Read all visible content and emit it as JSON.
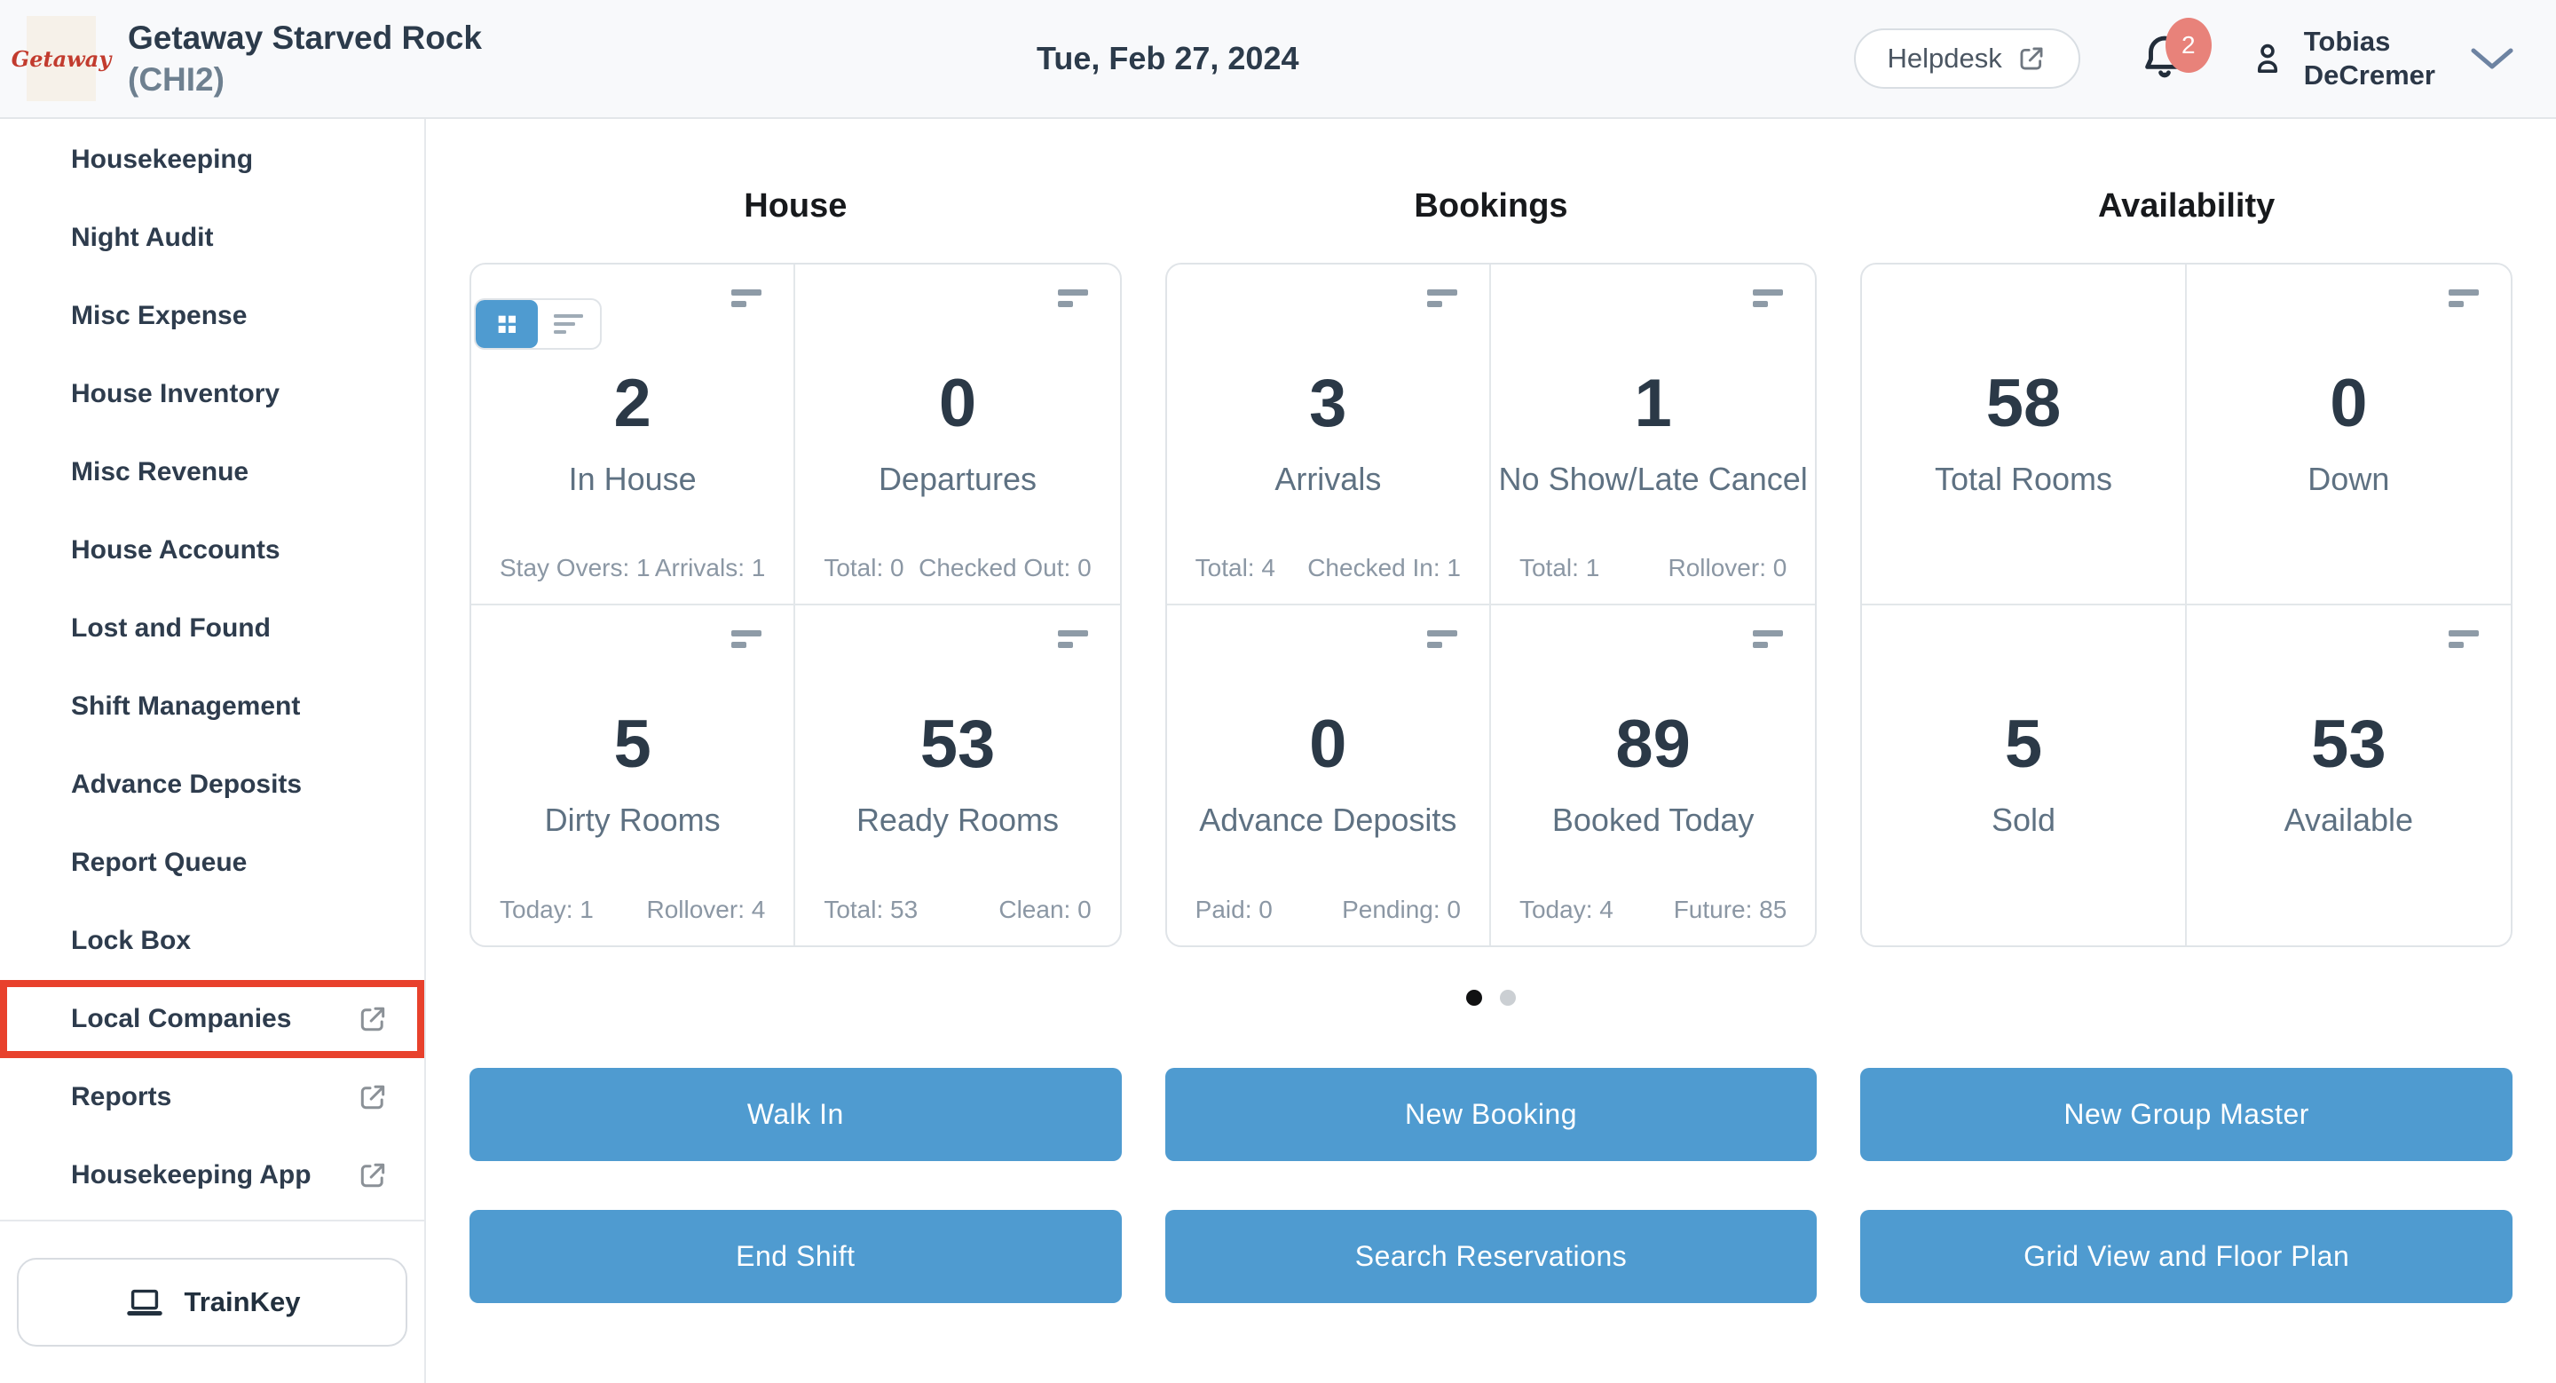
{
  "header": {
    "logo_text": "Getaway",
    "property_name": "Getaway Starved Rock",
    "property_code": "(CHI2)",
    "date": "Tue, Feb 27, 2024",
    "helpdesk_label": "Helpdesk",
    "notification_count": "2",
    "user_name_line1": "Tobias",
    "user_name_line2": "DeCremer"
  },
  "sidebar": {
    "items": [
      {
        "label": "Housekeeping",
        "external": false,
        "highlighted": false
      },
      {
        "label": "Night Audit",
        "external": false,
        "highlighted": false
      },
      {
        "label": "Misc Expense",
        "external": false,
        "highlighted": false
      },
      {
        "label": "House Inventory",
        "external": false,
        "highlighted": false
      },
      {
        "label": "Misc Revenue",
        "external": false,
        "highlighted": false
      },
      {
        "label": "House Accounts",
        "external": false,
        "highlighted": false
      },
      {
        "label": "Lost and Found",
        "external": false,
        "highlighted": false
      },
      {
        "label": "Shift Management",
        "external": false,
        "highlighted": false
      },
      {
        "label": "Advance Deposits",
        "external": false,
        "highlighted": false
      },
      {
        "label": "Report Queue",
        "external": false,
        "highlighted": false
      },
      {
        "label": "Lock Box",
        "external": false,
        "highlighted": false
      },
      {
        "label": "Local Companies",
        "external": true,
        "highlighted": true
      },
      {
        "label": "Reports",
        "external": true,
        "highlighted": false
      },
      {
        "label": "Housekeeping App",
        "external": true,
        "highlighted": false
      }
    ],
    "trainkey_label": "TrainKey"
  },
  "view_toggle": {
    "active": "grid"
  },
  "sections": [
    {
      "title": "House",
      "cards": [
        {
          "value": "2",
          "label": "In House",
          "icon": true,
          "stats": [
            "Stay Overs: 1",
            "Arrivals: 1"
          ]
        },
        {
          "value": "0",
          "label": "Departures",
          "icon": true,
          "stats": [
            "Total: 0",
            "Checked Out: 0"
          ]
        },
        {
          "value": "5",
          "label": "Dirty Rooms",
          "icon": true,
          "stats": [
            "Today: 1",
            "Rollover: 4"
          ]
        },
        {
          "value": "53",
          "label": "Ready Rooms",
          "icon": true,
          "stats": [
            "Total: 53",
            "Clean: 0"
          ]
        }
      ]
    },
    {
      "title": "Bookings",
      "cards": [
        {
          "value": "3",
          "label": "Arrivals",
          "icon": true,
          "stats": [
            "Total: 4",
            "Checked In: 1"
          ]
        },
        {
          "value": "1",
          "label": "No Show/Late Cancel",
          "icon": true,
          "stats": [
            "Total: 1",
            "Rollover: 0"
          ]
        },
        {
          "value": "0",
          "label": "Advance Deposits",
          "icon": true,
          "stats": [
            "Paid: 0",
            "Pending: 0"
          ]
        },
        {
          "value": "89",
          "label": "Booked Today",
          "icon": true,
          "stats": [
            "Today: 4",
            "Future: 85"
          ]
        }
      ]
    },
    {
      "title": "Availability",
      "cards": [
        {
          "value": "58",
          "label": "Total Rooms",
          "icon": false,
          "stats": []
        },
        {
          "value": "0",
          "label": "Down",
          "icon": true,
          "stats": []
        },
        {
          "value": "5",
          "label": "Sold",
          "icon": false,
          "stats": []
        },
        {
          "value": "53",
          "label": "Available",
          "icon": true,
          "stats": []
        }
      ]
    }
  ],
  "carousel": {
    "dot_count": 2,
    "active_index": 0
  },
  "actions": {
    "rows": [
      [
        "Walk In",
        "New Booking",
        "New Group Master"
      ],
      [
        "End Shift",
        "Search Reservations",
        "Grid View and Floor Plan"
      ]
    ]
  },
  "colors": {
    "accent_blue": "#4f9bd0",
    "annotation_red": "#e8412c",
    "badge_red": "#e8827a",
    "number_navy": "#2b3947",
    "label_slate": "#5e7182",
    "logo_red": "#c23b2e"
  }
}
